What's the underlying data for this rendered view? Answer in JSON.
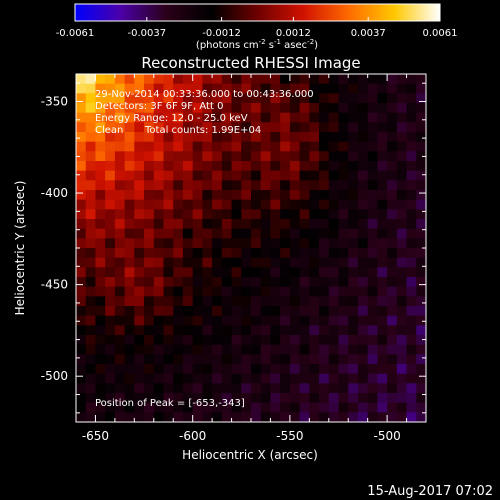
{
  "chart_data": {
    "type": "heatmap",
    "title": "Reconstructed RHESSI Image",
    "xlabel": "Heliocentric X (arcsec)",
    "ylabel": "Heliocentric Y (arcsec)",
    "xlim": [
      -660,
      -480
    ],
    "ylim": [
      -525,
      -335
    ],
    "x_ticks": [
      -650,
      -600,
      -550,
      -500
    ],
    "x_tick_labels": [
      "-650",
      "-600",
      "-550",
      "-500"
    ],
    "y_ticks": [
      -350,
      -400,
      -450,
      -500
    ],
    "y_tick_labels": [
      "-350",
      "-400",
      "-450",
      "-500"
    ],
    "grid": false,
    "colorbar": {
      "range": [
        -0.0061,
        0.0061
      ],
      "ticks": [
        -0.0061,
        -0.0037,
        -0.0012,
        0.0012,
        0.0037,
        0.0061
      ],
      "tick_labels": [
        "-0.0061",
        "-0.0037",
        "-0.0012",
        "0.0012",
        "0.0037",
        "0.0061"
      ],
      "unit_prefix": "(photons cm",
      "unit_exp1": "-2",
      "unit_mid": " s",
      "unit_exp2": "-1",
      "unit_mid2": " asec",
      "unit_exp3": "-2",
      "unit_suffix": ")",
      "colormap_stops": [
        "#0000ff",
        "#4b00a8",
        "#2a0018",
        "#000000",
        "#6e0000",
        "#d01200",
        "#ff6a00",
        "#ffc800",
        "#ffffff"
      ]
    },
    "annotations": {
      "time_range": "29-Nov-2014 00:33:36.000 to 00:43:36.000",
      "detectors": "Detectors: 3F 6F 9F, Att 0",
      "energy": "Energy Range: 12.0 - 25.0 keV",
      "clean": "Clean",
      "counts": "Total counts: 1.99E+04",
      "peak": "Position of Peak = [-653,-343]"
    },
    "peak": {
      "x": -653,
      "y": -343
    },
    "grid_size": 36
  },
  "footer": {
    "date": "15-Aug-2017 07:02"
  }
}
